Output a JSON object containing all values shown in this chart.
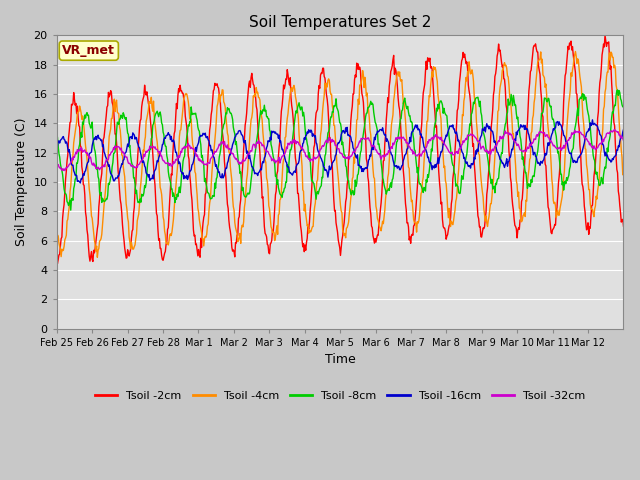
{
  "title": "Soil Temperatures Set 2",
  "xlabel": "Time",
  "ylabel": "Soil Temperature (C)",
  "ylim": [
    0,
    20
  ],
  "yticks": [
    0,
    2,
    4,
    6,
    8,
    10,
    12,
    14,
    16,
    18,
    20
  ],
  "fig_bg_color": "#c8c8c8",
  "plot_bg_color": "#e0e0e0",
  "annotation_text": "VR_met",
  "annotation_color": "#8b0000",
  "annotation_bg": "#ffffcc",
  "annotation_edge": "#aaaa00",
  "series_colors": {
    "Tsoil -2cm": "#ff0000",
    "Tsoil -4cm": "#ff8c00",
    "Tsoil -8cm": "#00cc00",
    "Tsoil -16cm": "#0000cc",
    "Tsoil -32cm": "#cc00cc"
  },
  "x_tick_labels": [
    "Feb 25",
    "Feb 26",
    "Feb 27",
    "Feb 28",
    "Mar 1",
    "Mar 2",
    "Mar 3",
    "Mar 4",
    "Mar 5",
    "Mar 6",
    "Mar 7",
    "Mar 8",
    "Mar 9",
    "Mar 10",
    "Mar 11",
    "Mar 12"
  ],
  "num_days": 16,
  "points_per_day": 48,
  "line_width": 1.0
}
